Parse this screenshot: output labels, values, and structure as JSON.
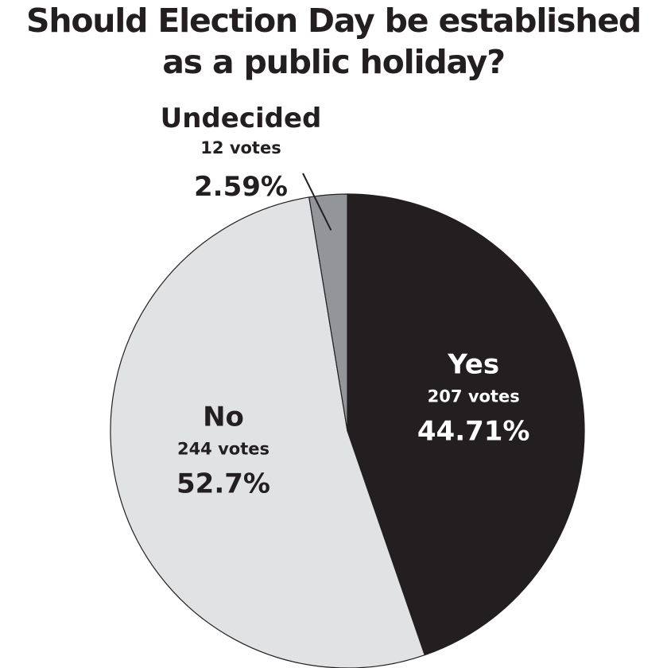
{
  "chart_data": {
    "type": "pie",
    "title": [
      "Should Election Day be established",
      "as a public holiday?"
    ],
    "slices": [
      {
        "label": "Yes",
        "votes": "207 votes",
        "percent": "44.71%",
        "value": 44.71,
        "color": "#231f20",
        "text_color": "#ffffff"
      },
      {
        "label": "No",
        "votes": "244 votes",
        "percent": "52.7%",
        "value": 52.7,
        "color": "#e1e2e4",
        "text_color": "#231f20"
      },
      {
        "label": "Undecided",
        "votes": "12 votes",
        "percent": "2.59%",
        "value": 2.59,
        "color": "#939598",
        "text_color": "#231f20"
      }
    ]
  }
}
